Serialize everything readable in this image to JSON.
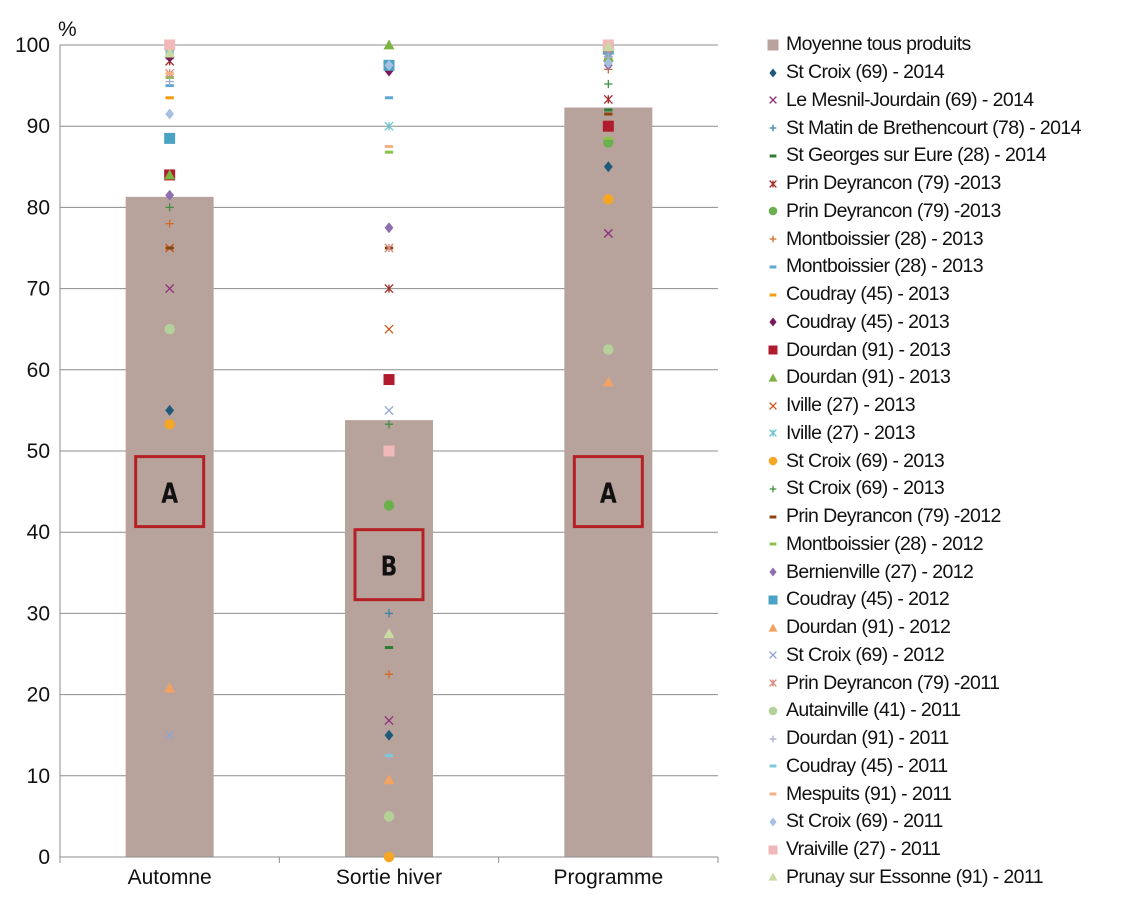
{
  "chart_data": {
    "type": "bar",
    "ylabel": "%",
    "ylim": [
      0,
      100
    ],
    "yticks": [
      0,
      10,
      20,
      30,
      40,
      50,
      60,
      70,
      80,
      90,
      100
    ],
    "grid": true,
    "legend_position": "right",
    "categories": [
      "Automne",
      "Sortie hiver",
      "Programme"
    ],
    "bar_series": {
      "name": "Moyenne tous produits",
      "color": "#b8a39c",
      "values": [
        81.3,
        53.8,
        92.3
      ]
    },
    "group_letters": [
      "A",
      "B",
      "A"
    ],
    "group_box_color": "#b52025",
    "series": [
      {
        "name": "St Croix (69) - 2014",
        "marker": "diamond",
        "color": "#1f5a7a",
        "values": [
          55,
          15,
          85
        ]
      },
      {
        "name": "Le Mesnil-Jourdain (69) - 2014",
        "marker": "x",
        "color": "#8b2f7e",
        "values": [
          70,
          16.8,
          76.8
        ]
      },
      {
        "name": "St Matin de Brethencourt (78) - 2014",
        "marker": "plus",
        "color": "#3a7fa8",
        "values": [
          98.3,
          30,
          98.3
        ]
      },
      {
        "name": "St Georges sur Eure (28) - 2014",
        "marker": "dash",
        "color": "#2e7d32",
        "values": [
          99.4,
          25.8,
          92
        ]
      },
      {
        "name": "Prin Deyrancon (79) -2013",
        "marker": "star",
        "color": "#a52a2a",
        "values": [
          98,
          70,
          93.3
        ]
      },
      {
        "name": "Prin Deyrancon (79) -2013",
        "marker": "circle",
        "color": "#6ab04c",
        "values": [
          84,
          43.3,
          88
        ]
      },
      {
        "name": "Montboissier (28) - 2013",
        "marker": "plus",
        "color": "#d2692a",
        "values": [
          78,
          22.5,
          97
        ]
      },
      {
        "name": "Montboissier (28) - 2013",
        "marker": "dash",
        "color": "#5fa8d3",
        "values": [
          95,
          93.5,
          98
        ]
      },
      {
        "name": "Coudray (45) - 2013",
        "marker": "dash",
        "color": "#f39c12",
        "values": [
          93.5,
          97,
          99
        ]
      },
      {
        "name": "Coudray (45) - 2013",
        "marker": "diamond",
        "color": "#7b1a5a",
        "values": [
          98.5,
          96.8,
          99.2
        ]
      },
      {
        "name": "Dourdan (91) - 2013",
        "marker": "square",
        "color": "#b01c2e",
        "values": [
          84,
          58.8,
          90
        ]
      },
      {
        "name": "Dourdan (91) - 2013",
        "marker": "triangle",
        "color": "#7cb342",
        "values": [
          84,
          100,
          98.5
        ]
      },
      {
        "name": "Iville (27) - 2013",
        "marker": "x",
        "color": "#c85a1a",
        "values": [
          75,
          65,
          99
        ]
      },
      {
        "name": "Iville (27) - 2013",
        "marker": "star",
        "color": "#6cc5cf",
        "values": [
          99,
          90,
          99
        ]
      },
      {
        "name": "St Croix (69) - 2013",
        "marker": "circle",
        "color": "#f5a623",
        "values": [
          53.3,
          0,
          81
        ]
      },
      {
        "name": "St Croix (69) - 2013",
        "marker": "plus",
        "color": "#3e8e41",
        "values": [
          80,
          53.3,
          95.2
        ]
      },
      {
        "name": "Prin Deyrancon (79) -2012",
        "marker": "dash",
        "color": "#8b4513",
        "values": [
          75,
          75,
          91.5
        ]
      },
      {
        "name": "Montboissier (28) - 2012",
        "marker": "dash",
        "color": "#8bc34a",
        "values": [
          96,
          86.8,
          88.5
        ]
      },
      {
        "name": "Bernienville (27) - 2012",
        "marker": "diamond",
        "color": "#8e6fb0",
        "values": [
          81.5,
          77.5,
          97.5
        ]
      },
      {
        "name": "Coudray (45) - 2012",
        "marker": "square",
        "color": "#4ba3c3",
        "values": [
          88.5,
          97.5,
          99.5
        ]
      },
      {
        "name": "Dourdan (91) - 2012",
        "marker": "triangle",
        "color": "#f4a261",
        "values": [
          20.8,
          9.5,
          58.5
        ]
      },
      {
        "name": "St Croix (69) - 2012",
        "marker": "x",
        "color": "#8fa5d6",
        "values": [
          15,
          55,
          99
        ]
      },
      {
        "name": "Prin Deyrancon (79) -2011",
        "marker": "star",
        "color": "#d98a7e",
        "values": [
          96.5,
          75,
          99.5
        ]
      },
      {
        "name": "Autainville (41) - 2011",
        "marker": "circle",
        "color": "#b5d19a",
        "values": [
          65,
          5,
          62.5
        ]
      },
      {
        "name": "Dourdan (91) - 2011",
        "marker": "plus",
        "color": "#a9a9d8",
        "values": [
          95.5,
          12.5,
          98.5
        ]
      },
      {
        "name": "Coudray (45) - 2011",
        "marker": "dash",
        "color": "#7ec8d8",
        "values": [
          99,
          12.5,
          99.5
        ]
      },
      {
        "name": "Mespuits (91) - 2011",
        "marker": "dash",
        "color": "#f4b183",
        "values": [
          96.5,
          87.5,
          99.7
        ]
      },
      {
        "name": "St Croix (69) - 2011",
        "marker": "diamond",
        "color": "#a8c0e0",
        "values": [
          91.5,
          97.5,
          97.8
        ]
      },
      {
        "name": "Vraiville (27) - 2011",
        "marker": "square",
        "color": "#f0b8b8",
        "values": [
          100,
          50,
          100
        ]
      },
      {
        "name": "Prunay sur Essonne (91) - 2011",
        "marker": "triangle",
        "color": "#c9dba3",
        "values": [
          99,
          27.5,
          99.8
        ]
      }
    ]
  }
}
